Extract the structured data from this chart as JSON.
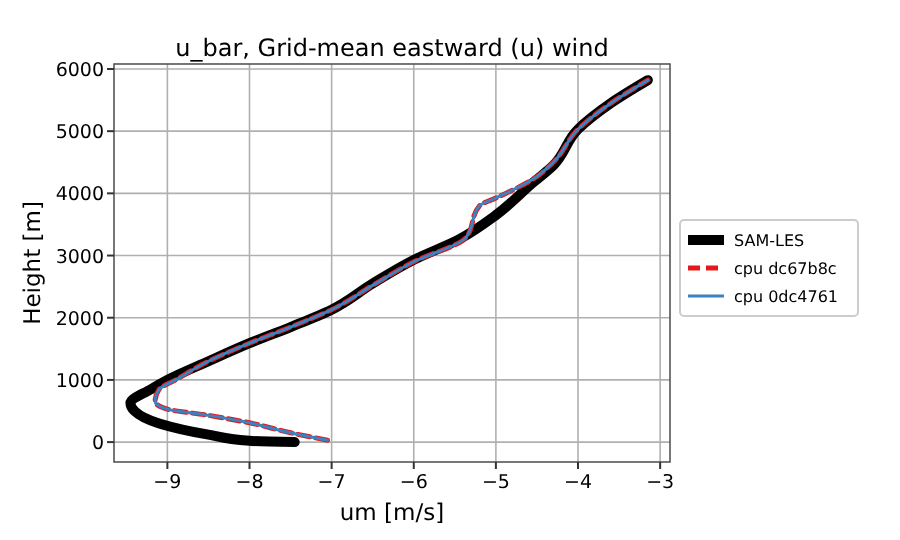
{
  "chart_data": {
    "type": "line",
    "title": "u_bar, Grid-mean eastward (u) wind",
    "xlabel": "um [m/s]",
    "ylabel": "Height [m]",
    "xlim": [
      -9.65,
      -2.88
    ],
    "xticks": [
      {
        "value": -9,
        "label": "−9"
      },
      {
        "value": -8,
        "label": "−8"
      },
      {
        "value": -7,
        "label": "−7"
      },
      {
        "value": -6,
        "label": "−6"
      },
      {
        "value": -5,
        "label": "−5"
      },
      {
        "value": -4,
        "label": "−4"
      },
      {
        "value": -3,
        "label": "−3"
      }
    ],
    "ylim": [
      -320,
      6080
    ],
    "yticks": [
      0,
      1000,
      2000,
      3000,
      4000,
      5000,
      6000
    ],
    "grid": true,
    "legend": "right",
    "series": [
      {
        "name": "SAM-LES",
        "color": "#000000",
        "line_style": "solid",
        "x": [
          -7.45,
          -8.0,
          -8.5,
          -9.1,
          -9.4,
          -9.45,
          -9.2,
          -9.0,
          -8.5,
          -8.0,
          -7.5,
          -7.0,
          -6.5,
          -6.0,
          -5.45,
          -5.0,
          -4.55,
          -4.3,
          -4.0,
          -3.6,
          -3.15
        ],
        "values": [
          0,
          20,
          120,
          300,
          500,
          630,
          850,
          1000,
          1300,
          1590,
          1850,
          2130,
          2550,
          2930,
          3260,
          3650,
          4170,
          4450,
          5030,
          5450,
          5820
        ]
      },
      {
        "name": "cpu dc67b8c",
        "color": "#e31a1c",
        "line_style": "dashed",
        "x": [
          -7.05,
          -7.5,
          -8.0,
          -8.5,
          -9.0,
          -9.15,
          -9.1,
          -8.9,
          -8.5,
          -8.0,
          -7.5,
          -7.0,
          -6.5,
          -6.0,
          -5.37,
          -5.2,
          -5.0,
          -4.55,
          -4.3,
          -4.0,
          -3.6,
          -3.15
        ],
        "values": [
          30,
          150,
          310,
          430,
          530,
          650,
          850,
          1000,
          1300,
          1590,
          1850,
          2130,
          2520,
          2900,
          3280,
          3800,
          3925,
          4225,
          4500,
          5030,
          5450,
          5820
        ]
      },
      {
        "name": "cpu 0dc4761",
        "color": "#3a82c0",
        "line_style": "solid",
        "x": [
          -7.05,
          -7.5,
          -8.0,
          -8.5,
          -9.0,
          -9.15,
          -9.1,
          -8.9,
          -8.5,
          -8.0,
          -7.5,
          -7.0,
          -6.5,
          -6.0,
          -5.37,
          -5.2,
          -5.0,
          -4.55,
          -4.3,
          -4.0,
          -3.6,
          -3.15
        ],
        "values": [
          30,
          150,
          310,
          430,
          530,
          650,
          850,
          1000,
          1300,
          1590,
          1850,
          2130,
          2520,
          2900,
          3280,
          3800,
          3925,
          4225,
          4500,
          5030,
          5450,
          5820
        ]
      }
    ]
  }
}
